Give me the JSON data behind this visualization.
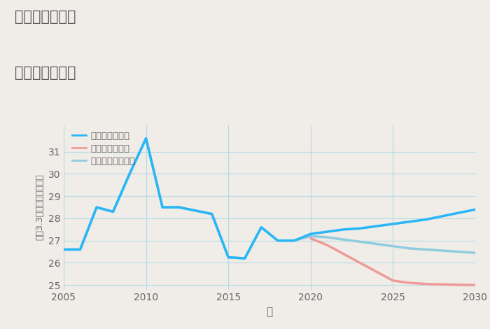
{
  "title_line1": "兵庫県飾磨駅の",
  "title_line2": "土地の価格推移",
  "xlabel": "年",
  "ylabel": "坪（3.3㎡）単価（万円）",
  "background_color": "#f0ede8",
  "plot_bg_color": "#f0ede8",
  "grid_color": "#add8e6",
  "xlim": [
    2005,
    2030
  ],
  "ylim": [
    24.8,
    32.2
  ],
  "yticks": [
    25,
    26,
    27,
    28,
    29,
    30,
    31
  ],
  "xticks": [
    2005,
    2010,
    2015,
    2020,
    2025,
    2030
  ],
  "good_scenario": {
    "label": "グッドシナリオ",
    "color": "#29b6f6",
    "linewidth": 2.5,
    "x": [
      2005,
      2006,
      2007,
      2008,
      2009,
      2010,
      2011,
      2012,
      2013,
      2014,
      2015,
      2016,
      2017,
      2018,
      2019,
      2020,
      2021,
      2022,
      2023,
      2024,
      2025,
      2026,
      2027,
      2028,
      2029,
      2030
    ],
    "y": [
      26.6,
      26.6,
      28.5,
      28.3,
      30.0,
      31.6,
      28.5,
      28.5,
      28.35,
      28.2,
      26.25,
      26.2,
      27.6,
      27.0,
      27.0,
      27.3,
      27.4,
      27.5,
      27.55,
      27.65,
      27.75,
      27.85,
      27.95,
      28.1,
      28.25,
      28.4
    ]
  },
  "bad_scenario": {
    "label": "バッドシナリオ",
    "color": "#ef9a9a",
    "linewidth": 2.5,
    "x": [
      2020,
      2021,
      2022,
      2023,
      2024,
      2025,
      2026,
      2027,
      2028,
      2029,
      2030
    ],
    "y": [
      27.1,
      26.8,
      26.4,
      26.0,
      25.6,
      25.2,
      25.1,
      25.05,
      25.03,
      25.01,
      25.0
    ]
  },
  "normal_scenario": {
    "label": "ノーマルシナリオ",
    "color": "#90cce0",
    "linewidth": 2.5,
    "x": [
      2005,
      2006,
      2007,
      2008,
      2009,
      2010,
      2011,
      2012,
      2013,
      2014,
      2015,
      2016,
      2017,
      2018,
      2019,
      2020,
      2021,
      2022,
      2023,
      2024,
      2025,
      2026,
      2027,
      2028,
      2029,
      2030
    ],
    "y": [
      26.6,
      26.6,
      28.5,
      28.3,
      30.0,
      31.6,
      28.5,
      28.5,
      28.35,
      28.2,
      26.25,
      26.2,
      27.6,
      27.0,
      27.0,
      27.2,
      27.15,
      27.05,
      26.95,
      26.85,
      26.75,
      26.65,
      26.6,
      26.55,
      26.5,
      26.45
    ]
  },
  "title_color": "#555555",
  "tick_color": "#666666",
  "label_color": "#666666"
}
